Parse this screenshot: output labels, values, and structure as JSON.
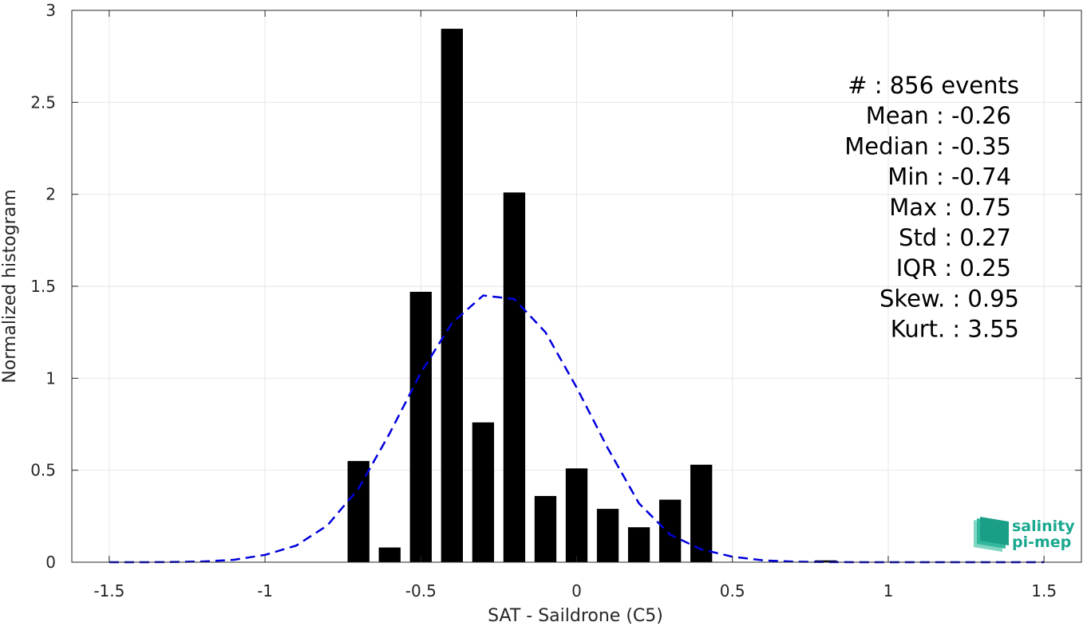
{
  "chart_data": {
    "type": "bar",
    "xlabel": "SAT - Saildrone (C5)",
    "ylabel": "Normalized histogram",
    "xlim": [
      -1.62,
      1.62
    ],
    "ylim": [
      0,
      3
    ],
    "xticks": [
      -1.5,
      -1,
      -0.5,
      0,
      0.5,
      1,
      1.5
    ],
    "xtick_labels": [
      "-1.5",
      "-1",
      "-0.5",
      "0",
      "0.5",
      "1",
      "1.5"
    ],
    "yticks": [
      0,
      0.5,
      1,
      1.5,
      2,
      2.5,
      3
    ],
    "ytick_labels": [
      "0",
      "0.5",
      "1",
      "1.5",
      "2",
      "2.5",
      "3"
    ],
    "grid": true,
    "bar_width": 0.07,
    "series": [
      {
        "type": "bar",
        "color": "#000000",
        "x": [
          -0.7,
          -0.6,
          -0.5,
          -0.4,
          -0.3,
          -0.2,
          -0.1,
          0.0,
          0.1,
          0.2,
          0.3,
          0.4,
          0.8
        ],
        "values": [
          0.55,
          0.08,
          1.47,
          2.9,
          0.76,
          2.01,
          0.36,
          0.51,
          0.29,
          0.19,
          0.34,
          0.53,
          0.01
        ]
      },
      {
        "type": "line",
        "style": "dashed",
        "color": "#0000dd",
        "x": [
          -1.5,
          -1.4,
          -1.3,
          -1.2,
          -1.1,
          -1.0,
          -0.9,
          -0.8,
          -0.7,
          -0.6,
          -0.5,
          -0.4,
          -0.3,
          -0.2,
          -0.1,
          0.0,
          0.1,
          0.2,
          0.3,
          0.4,
          0.5,
          0.6,
          0.7,
          0.8,
          0.9,
          1.0,
          1.1,
          1.2,
          1.3,
          1.4,
          1.5
        ],
        "values": [
          0.0,
          0.0,
          0.001,
          0.004,
          0.013,
          0.04,
          0.09,
          0.2,
          0.4,
          0.7,
          1.03,
          1.3,
          1.45,
          1.43,
          1.25,
          0.95,
          0.62,
          0.32,
          0.15,
          0.07,
          0.03,
          0.01,
          0.003,
          0.001,
          0.0,
          0.0,
          0.0,
          0.0,
          0.0,
          0.0,
          0.0
        ]
      }
    ],
    "stats": [
      {
        "label": "#  : 856 events"
      },
      {
        "label": "Mean : -0.26"
      },
      {
        "label": "Median : -0.35"
      },
      {
        "label": "Min : -0.74"
      },
      {
        "label": "Max : 0.75"
      },
      {
        "label": "Std : 0.27"
      },
      {
        "label": "IQR : 0.25"
      },
      {
        "label": "Skew. : 0.95"
      },
      {
        "label": "Kurt. : 3.55"
      }
    ],
    "colors": {
      "axis": "#262626",
      "grid": "#e6e6e6",
      "bars": "#000000",
      "fit_line": "#0000dd",
      "logo": "#1aa88f"
    }
  },
  "logo": {
    "line1": "salinity",
    "line2": "pi-mep"
  }
}
